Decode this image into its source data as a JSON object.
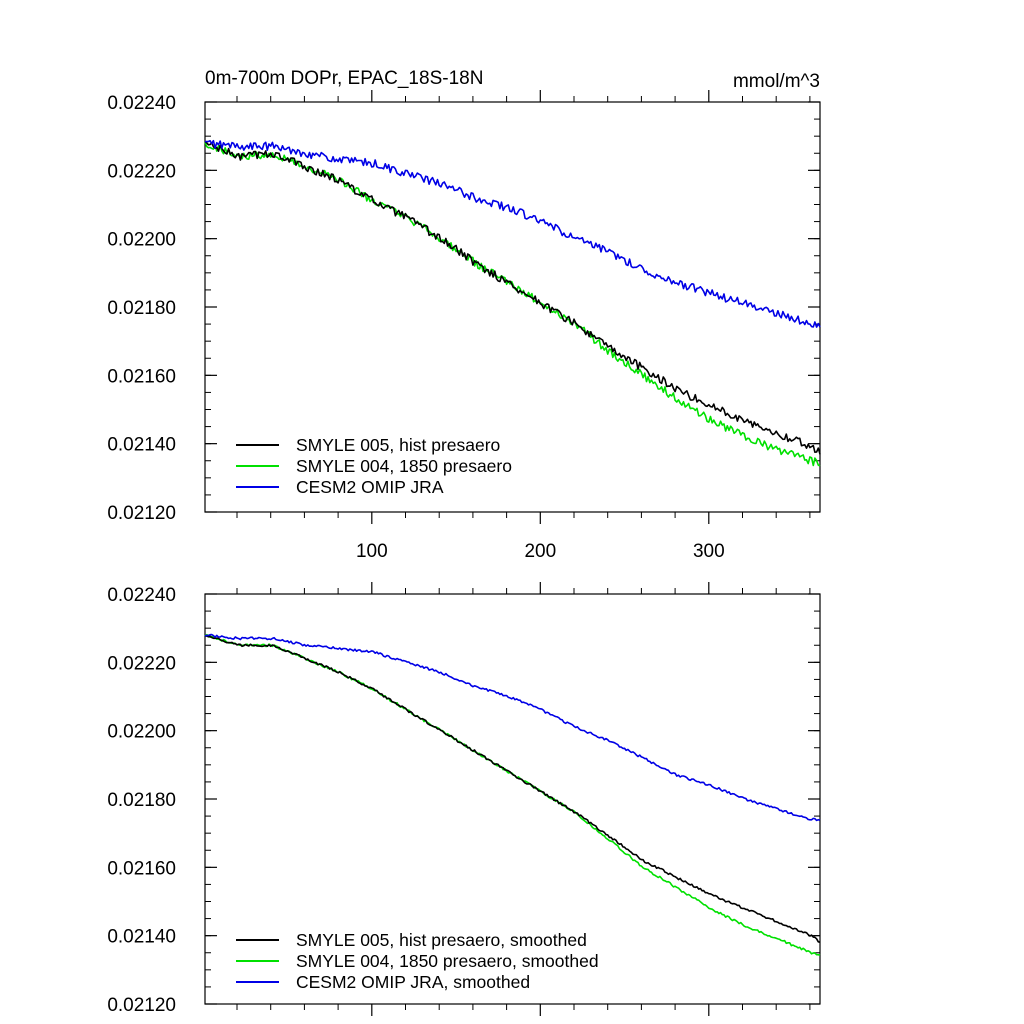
{
  "chart_data": [
    {
      "type": "line",
      "title": "0m-700m DOPr, EPAC_18S-18N",
      "units": "mmol/m^3",
      "xlim": [
        1,
        366
      ],
      "ylim": [
        0.0212,
        0.0224
      ],
      "xticks": [
        100,
        200,
        300
      ],
      "xtick_labels": [
        "100",
        "200",
        "300"
      ],
      "yticks": [
        0.0212,
        0.0214,
        0.0216,
        0.0218,
        0.022,
        0.0222,
        0.0224
      ],
      "ytick_labels": [
        "0.02120",
        "0.02140",
        "0.02160",
        "0.02180",
        "0.02200",
        "0.02220",
        "0.02240"
      ],
      "legend_position": "bottom-left",
      "grid": false,
      "x": [
        1,
        21,
        41,
        61,
        81,
        101,
        121,
        141,
        161,
        181,
        201,
        221,
        241,
        261,
        281,
        301,
        321,
        341,
        361,
        366
      ],
      "series": [
        {
          "name": "SMYLE 005, hist presaero",
          "color": "#000000",
          "values": [
            0.02228,
            0.02224,
            0.02225,
            0.02221,
            0.02217,
            0.02211,
            0.02206,
            0.022,
            0.02193,
            0.02187,
            0.02181,
            0.02175,
            0.02168,
            0.02162,
            0.02156,
            0.02151,
            0.02147,
            0.02143,
            0.02139,
            0.02138
          ]
        },
        {
          "name": "SMYLE 004, 1850 presaero",
          "color": "#00e000",
          "values": [
            0.02228,
            0.02224,
            0.02225,
            0.02221,
            0.02217,
            0.02211,
            0.02206,
            0.022,
            0.02193,
            0.02187,
            0.02181,
            0.02175,
            0.02167,
            0.0216,
            0.02153,
            0.02147,
            0.02142,
            0.02138,
            0.02135,
            0.02134
          ]
        },
        {
          "name": "CESM2 OMIP JRA",
          "color": "#0000e6",
          "values": [
            0.02228,
            0.02227,
            0.02227,
            0.02225,
            0.02223,
            0.02222,
            0.02219,
            0.02216,
            0.02212,
            0.02209,
            0.02205,
            0.022,
            0.02196,
            0.02191,
            0.02187,
            0.02184,
            0.02181,
            0.02178,
            0.02175,
            0.02174
          ]
        }
      ]
    },
    {
      "type": "line",
      "title": "",
      "units": "",
      "xlim": [
        1,
        366
      ],
      "ylim": [
        0.0212,
        0.0224
      ],
      "xticks": [
        100,
        200,
        300
      ],
      "xtick_labels": [],
      "yticks": [
        0.0212,
        0.0214,
        0.0216,
        0.0218,
        0.022,
        0.0222,
        0.0224
      ],
      "ytick_labels": [
        "0.02120",
        "0.02140",
        "0.02160",
        "0.02180",
        "0.02200",
        "0.02220",
        "0.02240"
      ],
      "legend_position": "bottom-left",
      "grid": false,
      "x": [
        1,
        21,
        41,
        61,
        81,
        101,
        121,
        141,
        161,
        181,
        201,
        221,
        241,
        261,
        281,
        301,
        321,
        341,
        361,
        366
      ],
      "series": [
        {
          "name": "SMYLE 005, hist presaero, smoothed",
          "color": "#000000",
          "values": [
            0.02228,
            0.02225,
            0.02225,
            0.02221,
            0.02217,
            0.02212,
            0.02206,
            0.022,
            0.02194,
            0.02188,
            0.02182,
            0.02176,
            0.02169,
            0.02162,
            0.02157,
            0.02152,
            0.02148,
            0.02144,
            0.0214,
            0.02138
          ]
        },
        {
          "name": "SMYLE 004, 1850 presaero, smoothed",
          "color": "#00e000",
          "values": [
            0.02228,
            0.02225,
            0.02225,
            0.02221,
            0.02217,
            0.02212,
            0.02206,
            0.022,
            0.02194,
            0.02188,
            0.02182,
            0.02176,
            0.02168,
            0.0216,
            0.02154,
            0.02148,
            0.02143,
            0.02139,
            0.02135,
            0.02134
          ]
        },
        {
          "name": "CESM2 OMIP JRA, smoothed",
          "color": "#0000e6",
          "values": [
            0.02228,
            0.02227,
            0.02227,
            0.02225,
            0.02224,
            0.02223,
            0.0222,
            0.02217,
            0.02213,
            0.0221,
            0.02206,
            0.02201,
            0.02197,
            0.02192,
            0.02187,
            0.02184,
            0.0218,
            0.02177,
            0.02174,
            0.02174
          ]
        }
      ]
    }
  ]
}
